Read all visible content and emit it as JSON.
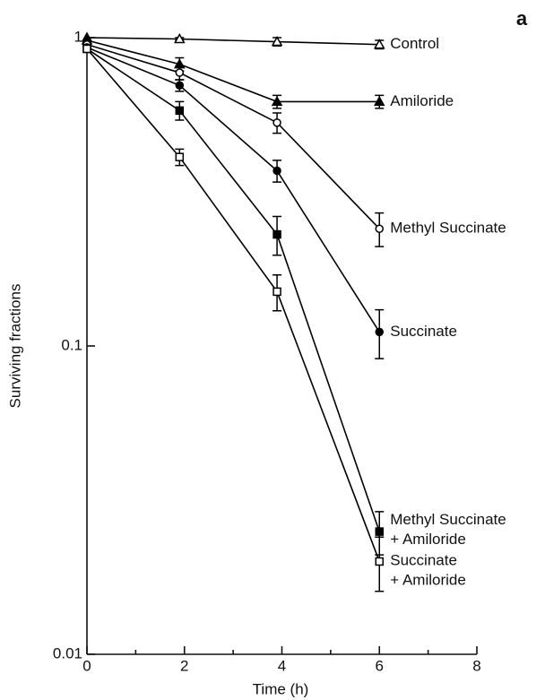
{
  "chart_data": {
    "type": "line",
    "panel_label": "a",
    "xlabel": "Time (h)",
    "ylabel": "Surviving fractions",
    "x": [
      0,
      1.9,
      3.9,
      6
    ],
    "xlim": [
      0,
      8
    ],
    "xticks": [
      0,
      2,
      4,
      6,
      8
    ],
    "xminorticks": [
      1,
      3,
      5,
      7
    ],
    "ylim": [
      0.01,
      1
    ],
    "yticks": [
      0.01,
      0.1,
      1
    ],
    "yscale": "log",
    "series": [
      {
        "name": "Control",
        "color": "#000000",
        "marker": "triangle-open",
        "values": [
          1,
          0.99,
          0.97,
          0.95
        ],
        "errors": [
          null,
          0.01,
          0.03,
          0.03
        ]
      },
      {
        "name": "Amiloride",
        "color": "#000000",
        "marker": "triangle-filled",
        "values": [
          0.98,
          0.82,
          0.62,
          0.62
        ],
        "errors": [
          null,
          0.04,
          0.03,
          0.03
        ]
      },
      {
        "name": "Methyl Succinate",
        "color": "#000000",
        "marker": "circle-open",
        "values": [
          0.95,
          0.77,
          0.53,
          0.24
        ],
        "errors": [
          null,
          0.04,
          0.04,
          0.03
        ]
      },
      {
        "name": "Succinate",
        "color": "#000000",
        "marker": "circle-filled",
        "values": [
          0.93,
          0.7,
          0.37,
          0.111
        ],
        "errors": [
          null,
          0.03,
          0.03,
          0.02
        ]
      },
      {
        "name": "Methyl Succinate\n+ Amiloride",
        "color": "#000000",
        "marker": "square-filled",
        "values": [
          0.92,
          0.58,
          0.23,
          0.025
        ],
        "errors": [
          null,
          0.04,
          0.033,
          0.004
        ]
      },
      {
        "name": "Succinate\n+ Amiloride",
        "color": "#000000",
        "marker": "square-open",
        "values": [
          0.92,
          0.41,
          0.15,
          0.02
        ],
        "errors": [
          null,
          0.025,
          0.02,
          0.004
        ]
      }
    ]
  }
}
